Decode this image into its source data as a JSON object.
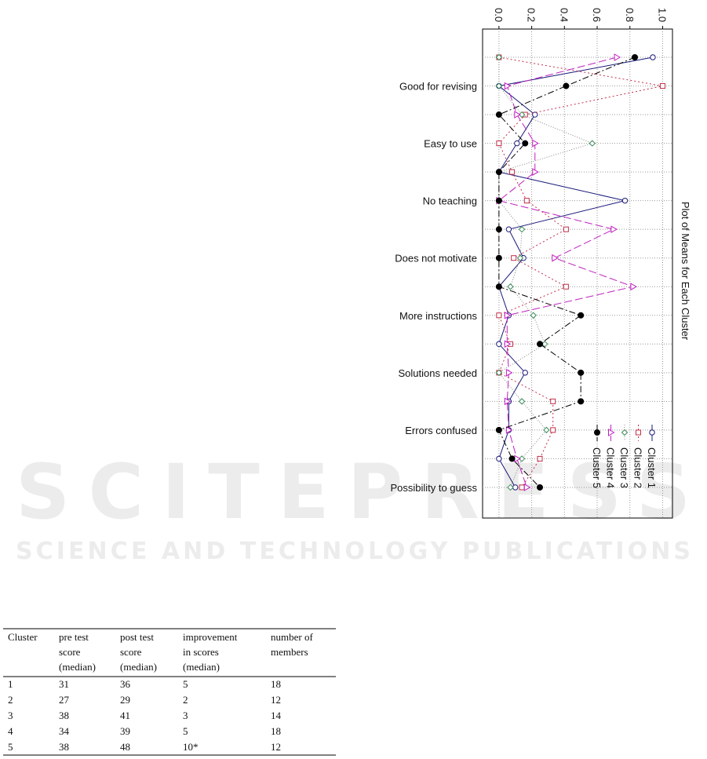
{
  "chart_data": {
    "type": "line",
    "title": "Plot of Means for Each Cluster",
    "categories": [
      null,
      "Good for revising",
      null,
      "Easy to use",
      null,
      "No teaching",
      null,
      "Does not motivate",
      null,
      "More instructions",
      null,
      "Solutions needed",
      null,
      "Errors confused",
      null,
      "Possibility to guess"
    ],
    "series": [
      {
        "name": "Cluster  1",
        "color": "#1a1a7a",
        "values": [
          0.94,
          0.0,
          0.22,
          0.11,
          0.0,
          0.77,
          0.06,
          0.15,
          0.0,
          0.06,
          0.0,
          0.16,
          0.06,
          0.06,
          0.0,
          0.1
        ]
      },
      {
        "name": "Cluster  2",
        "color": "#c0304a",
        "values": [
          0.0,
          1.0,
          0.16,
          0.0,
          0.08,
          0.17,
          0.41,
          0.09,
          0.41,
          0.0,
          0.07,
          0.0,
          0.33,
          0.33,
          0.25,
          0.14
        ]
      },
      {
        "name": "Cluster  3",
        "color": "#3a8a5a",
        "values": [
          0.0,
          0.0,
          0.14,
          0.57,
          0.0,
          0.0,
          0.14,
          0.13,
          0.07,
          0.21,
          0.28,
          0.0,
          0.14,
          0.29,
          0.14,
          0.07
        ]
      },
      {
        "name": "Cluster  4",
        "color": "#c020c0",
        "values": [
          0.72,
          0.05,
          0.11,
          0.22,
          0.22,
          0.0,
          0.7,
          0.34,
          0.82,
          0.05,
          0.05,
          0.06,
          0.05,
          0.06,
          0.11,
          0.17
        ]
      },
      {
        "name": "Cluster  5",
        "color": "#000000",
        "values": [
          0.83,
          0.41,
          0.0,
          0.16,
          0.0,
          0.0,
          0.0,
          0.0,
          0.0,
          0.5,
          0.25,
          0.5,
          0.5,
          0.0,
          0.08,
          0.25
        ]
      }
    ],
    "ylim": [
      -0.1,
      1.06
    ],
    "yticks": [
      {
        "value": 0,
        "label": "0.0"
      },
      {
        "value": 0.2,
        "label": "0.2"
      },
      {
        "value": 0.4,
        "label": "0.4"
      },
      {
        "value": 0.6,
        "label": "0.6"
      },
      {
        "value": 0.8,
        "label": "0.8"
      },
      {
        "value": 1,
        "label": "1.0"
      }
    ],
    "grid": true
  },
  "watermark": {
    "title": "SCITEPRESS",
    "subtitle": "SCIENCE AND TECHNOLOGY PUBLICATIONS"
  },
  "table": {
    "header": [
      [
        "Cluster"
      ],
      [
        "pre test",
        "score",
        "(median)"
      ],
      [
        "post test",
        "score",
        "(median)"
      ],
      [
        "improvement",
        "in scores",
        "(median)"
      ],
      [
        "number of",
        "members"
      ]
    ],
    "rows": [
      [
        "1",
        "31",
        "36",
        "5",
        "18"
      ],
      [
        "2",
        "27",
        "29",
        "2",
        "12"
      ],
      [
        "3",
        "38",
        "41",
        "3",
        "14"
      ],
      [
        "4",
        "34",
        "39",
        "5",
        "18"
      ],
      [
        "5",
        "38",
        "48",
        "10*",
        "12"
      ]
    ]
  }
}
